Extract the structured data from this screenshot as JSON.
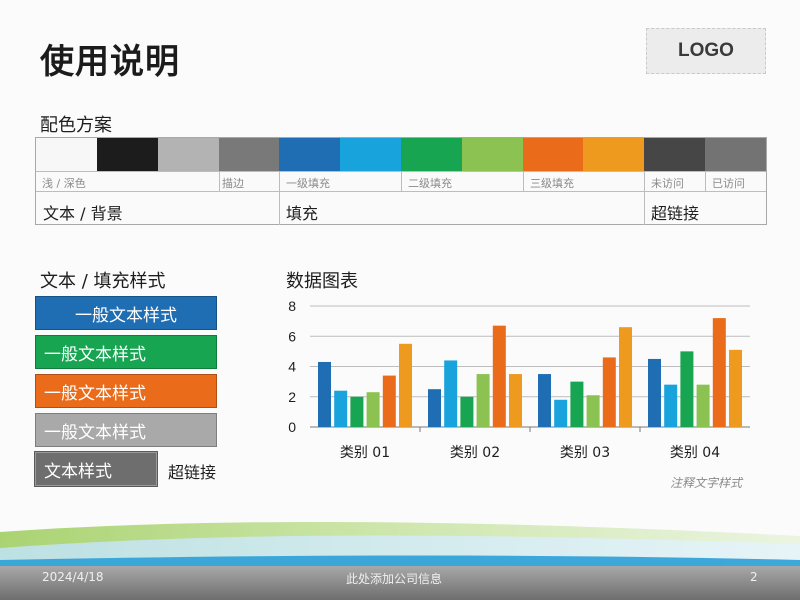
{
  "slide": {
    "title": "使用说明",
    "logo": "LOGO"
  },
  "palette_section": {
    "heading": "配色方案",
    "swatches": [
      "#f7f7f7",
      "#1c1c1c",
      "#b3b3b3",
      "#797979",
      "#1f6eb4",
      "#18a3dd",
      "#17a552",
      "#8cc251",
      "#ea6c1b",
      "#ed9a1f",
      "#464646",
      "#737373"
    ],
    "small_labels": [
      "浅 / 深色",
      "描边",
      "一级填充",
      "二级填充",
      "三级填充",
      "未访问",
      "已访问"
    ],
    "big_labels": [
      "文本 / 背景",
      "填充",
      "超链接"
    ]
  },
  "styles_section": {
    "heading": "文本 / 填充样式",
    "boxes": [
      {
        "text": "一般文本样式",
        "color": "#1f6eb4"
      },
      {
        "text": "一般文本样式",
        "color": "#17a552"
      },
      {
        "text": "一般文本样式",
        "color": "#ea6c1b"
      },
      {
        "text": "一般文本样式",
        "color": "#a9a9a9"
      }
    ],
    "outline_box": {
      "text": "文本样式",
      "color": "#6e6e6e"
    },
    "hyperlink": "超链接"
  },
  "chart_section": {
    "heading": "数据图表",
    "note": "注释文字样式"
  },
  "chart_data": {
    "type": "bar",
    "title": "数据图表",
    "categories": [
      "类别 01",
      "类别 02",
      "类别 03",
      "类别 04"
    ],
    "series": [
      {
        "values": [
          4.3,
          2.5,
          3.5,
          4.5
        ],
        "color": "#1f6eb4"
      },
      {
        "values": [
          2.4,
          4.4,
          1.8,
          2.8
        ],
        "color": "#18a3dd"
      },
      {
        "values": [
          2.0,
          2.0,
          3.0,
          5.0
        ],
        "color": "#17a552"
      },
      {
        "values": [
          2.3,
          3.5,
          2.1,
          2.8
        ],
        "color": "#8cc251"
      },
      {
        "values": [
          3.4,
          6.7,
          4.6,
          7.2
        ],
        "color": "#ea6c1b"
      },
      {
        "values": [
          5.5,
          3.5,
          6.6,
          5.1
        ],
        "color": "#ed9a1f"
      }
    ],
    "yticks": [
      "0",
      "2",
      "4",
      "6",
      "8"
    ],
    "ylim": [
      0,
      8
    ],
    "grid": true
  },
  "footer": {
    "date": "2024/4/18",
    "company": "此处添加公司信息",
    "page": "2"
  }
}
